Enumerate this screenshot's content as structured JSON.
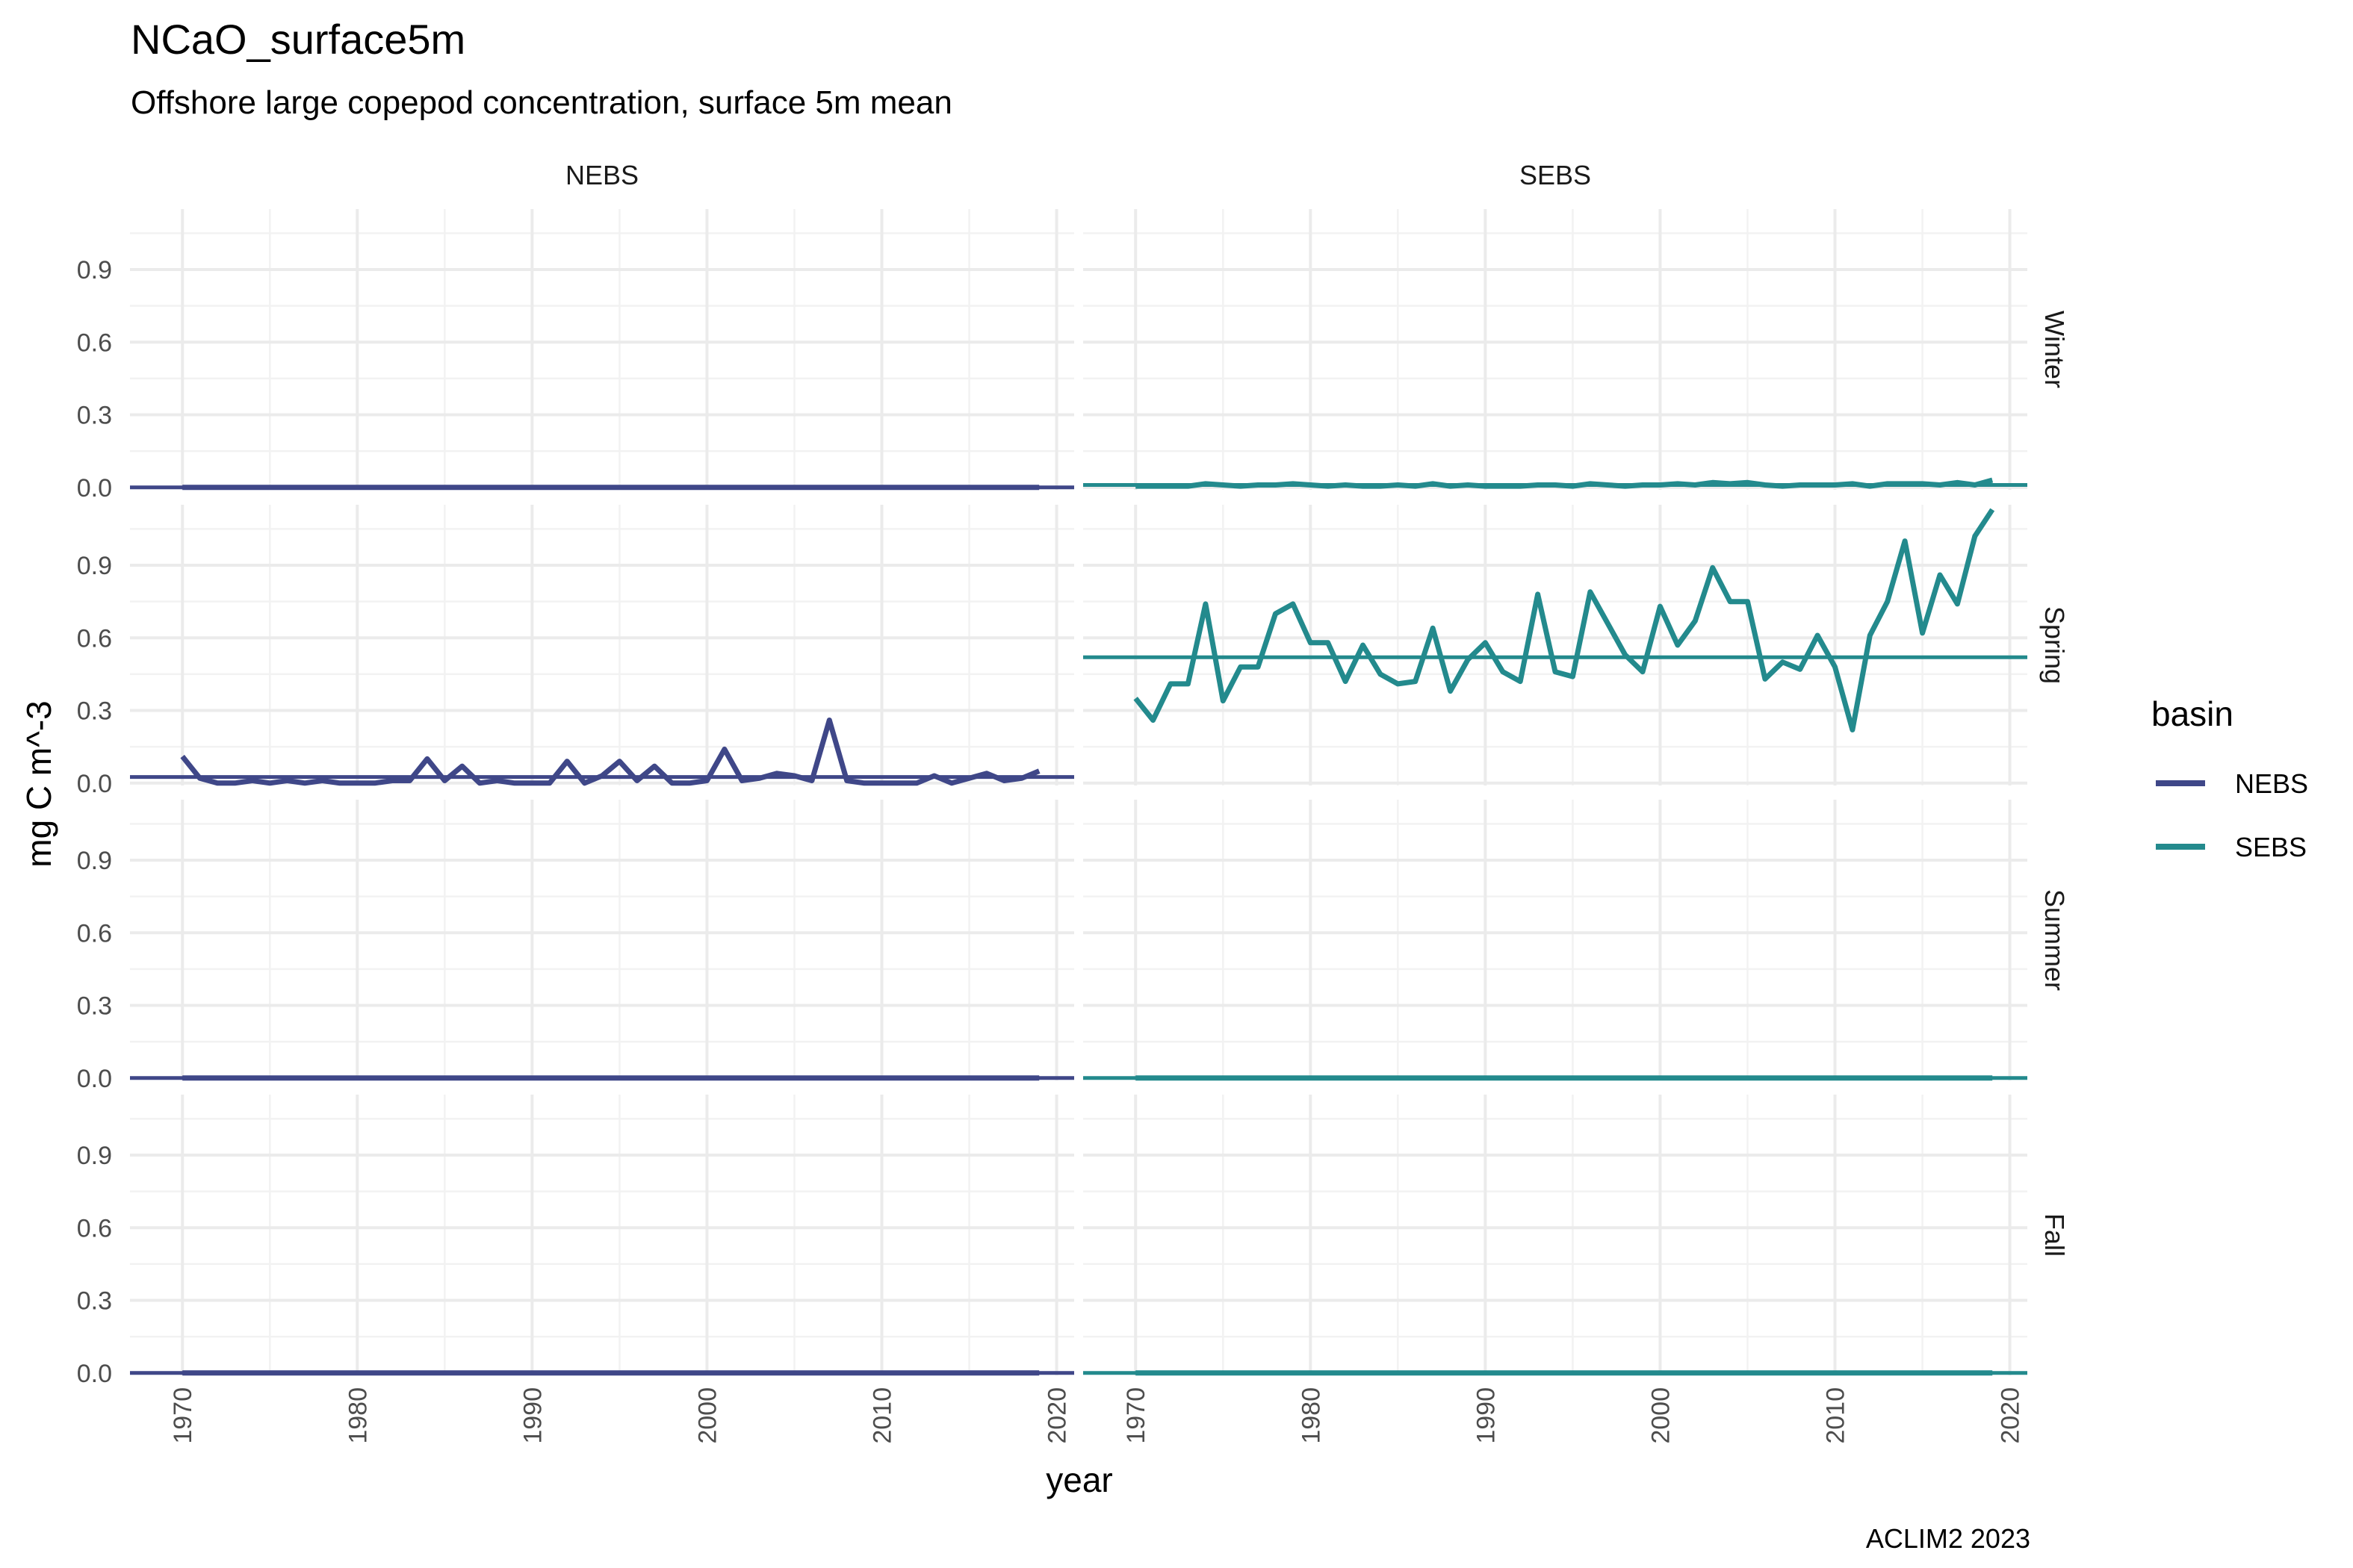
{
  "chart_data": {
    "type": "line",
    "title": "NCaO_surface5m",
    "subtitle": "Offshore large copepod concentration, surface 5m mean",
    "xlabel": "year",
    "ylabel": "mg C m^-3",
    "caption": "ACLIM2 2023",
    "xlim": [
      1967,
      2021
    ],
    "ylim": [
      -0.01,
      1.15
    ],
    "x_ticks": [
      "1970",
      "1980",
      "1990",
      "2000",
      "2010",
      "2020"
    ],
    "y_ticks": [
      "0.0",
      "0.3",
      "0.6",
      "0.9"
    ],
    "grid": true,
    "legend": {
      "title": "basin",
      "position": "right",
      "entries": [
        {
          "label": "NEBS",
          "color": "#3f4788"
        },
        {
          "label": "SEBS",
          "color": "#238a8d"
        }
      ]
    },
    "facet_columns": [
      "NEBS",
      "SEBS"
    ],
    "facet_rows": [
      "Winter",
      "Spring",
      "Summer",
      "Fall"
    ],
    "x": [
      1970,
      1971,
      1972,
      1973,
      1974,
      1975,
      1976,
      1977,
      1978,
      1979,
      1980,
      1981,
      1982,
      1983,
      1984,
      1985,
      1986,
      1987,
      1988,
      1989,
      1990,
      1991,
      1992,
      1993,
      1994,
      1995,
      1996,
      1997,
      1998,
      1999,
      2000,
      2001,
      2002,
      2003,
      2004,
      2005,
      2006,
      2007,
      2008,
      2009,
      2010,
      2011,
      2012,
      2013,
      2014,
      2015,
      2016,
      2017,
      2018,
      2019
    ],
    "panels": [
      {
        "row": "Winter",
        "col": "NEBS",
        "color": "#3f4788",
        "mean": 0.0,
        "values": [
          0,
          0,
          0,
          0,
          0,
          0,
          0,
          0,
          0,
          0,
          0,
          0,
          0,
          0,
          0,
          0,
          0,
          0,
          0,
          0,
          0,
          0,
          0,
          0,
          0,
          0,
          0,
          0,
          0,
          0,
          0,
          0,
          0,
          0,
          0,
          0,
          0,
          0,
          0,
          0,
          0,
          0,
          0,
          0,
          0,
          0,
          0,
          0,
          0,
          0
        ]
      },
      {
        "row": "Winter",
        "col": "SEBS",
        "color": "#238a8d",
        "mean": 0.01,
        "values": [
          0.005,
          0.005,
          0.005,
          0.005,
          0.015,
          0.01,
          0.005,
          0.01,
          0.01,
          0.015,
          0.01,
          0.005,
          0.01,
          0.005,
          0.005,
          0.01,
          0.005,
          0.015,
          0.005,
          0.01,
          0.005,
          0.005,
          0.005,
          0.01,
          0.01,
          0.005,
          0.015,
          0.01,
          0.005,
          0.01,
          0.01,
          0.015,
          0.01,
          0.02,
          0.015,
          0.02,
          0.01,
          0.005,
          0.01,
          0.01,
          0.01,
          0.015,
          0.005,
          0.015,
          0.015,
          0.015,
          0.01,
          0.02,
          0.01,
          0.03
        ]
      },
      {
        "row": "Spring",
        "col": "NEBS",
        "color": "#3f4788",
        "mean": 0.025,
        "values": [
          0.11,
          0.02,
          0.0,
          0.0,
          0.01,
          0.0,
          0.01,
          0.0,
          0.01,
          0.0,
          0.0,
          0.0,
          0.01,
          0.01,
          0.1,
          0.01,
          0.07,
          0.0,
          0.01,
          0.0,
          0.0,
          0.0,
          0.09,
          0.0,
          0.03,
          0.09,
          0.01,
          0.07,
          0.0,
          0.0,
          0.01,
          0.14,
          0.01,
          0.02,
          0.04,
          0.03,
          0.01,
          0.26,
          0.01,
          0.0,
          0.0,
          0.0,
          0.0,
          0.03,
          0.0,
          0.02,
          0.04,
          0.01,
          0.02,
          0.05
        ]
      },
      {
        "row": "Spring",
        "col": "SEBS",
        "color": "#238a8d",
        "mean": 0.52,
        "values": [
          0.35,
          0.26,
          0.41,
          0.41,
          0.74,
          0.34,
          0.48,
          0.48,
          0.7,
          0.74,
          0.58,
          0.58,
          0.42,
          0.57,
          0.45,
          0.41,
          0.42,
          0.64,
          0.38,
          0.51,
          0.58,
          0.46,
          0.42,
          0.78,
          0.46,
          0.44,
          0.79,
          0.66,
          0.53,
          0.46,
          0.73,
          0.57,
          0.67,
          0.89,
          0.75,
          0.75,
          0.43,
          0.5,
          0.47,
          0.61,
          0.48,
          0.22,
          0.61,
          0.75,
          1.0,
          0.62,
          0.86,
          0.74,
          1.02,
          1.13
        ]
      },
      {
        "row": "Summer",
        "col": "NEBS",
        "color": "#3f4788",
        "mean": 0.0,
        "values": [
          0,
          0,
          0,
          0,
          0,
          0,
          0,
          0,
          0,
          0,
          0,
          0,
          0,
          0,
          0,
          0,
          0,
          0,
          0,
          0,
          0,
          0,
          0,
          0,
          0,
          0,
          0,
          0,
          0,
          0,
          0,
          0,
          0,
          0,
          0,
          0,
          0,
          0,
          0,
          0,
          0,
          0,
          0,
          0,
          0,
          0,
          0,
          0,
          0,
          0
        ]
      },
      {
        "row": "Summer",
        "col": "SEBS",
        "color": "#238a8d",
        "mean": 0.0,
        "values": [
          0,
          0,
          0,
          0,
          0,
          0,
          0,
          0,
          0,
          0,
          0,
          0,
          0,
          0,
          0,
          0,
          0,
          0,
          0,
          0,
          0,
          0,
          0,
          0,
          0,
          0,
          0,
          0,
          0,
          0,
          0,
          0,
          0,
          0,
          0,
          0,
          0,
          0,
          0,
          0,
          0,
          0,
          0,
          0,
          0,
          0,
          0,
          0,
          0,
          0
        ]
      },
      {
        "row": "Fall",
        "col": "NEBS",
        "color": "#3f4788",
        "mean": 0.0,
        "values": [
          0,
          0,
          0,
          0,
          0,
          0,
          0,
          0,
          0,
          0,
          0,
          0,
          0,
          0,
          0,
          0,
          0,
          0,
          0,
          0,
          0,
          0,
          0,
          0,
          0,
          0,
          0,
          0,
          0,
          0,
          0,
          0,
          0,
          0,
          0,
          0,
          0,
          0,
          0,
          0,
          0,
          0,
          0,
          0,
          0,
          0,
          0,
          0,
          0,
          0
        ]
      },
      {
        "row": "Fall",
        "col": "SEBS",
        "color": "#238a8d",
        "mean": 0.0,
        "values": [
          0,
          0,
          0,
          0,
          0,
          0,
          0,
          0,
          0,
          0,
          0,
          0,
          0,
          0,
          0,
          0,
          0,
          0,
          0,
          0,
          0,
          0,
          0,
          0,
          0,
          0,
          0,
          0,
          0,
          0,
          0,
          0,
          0,
          0,
          0,
          0,
          0,
          0,
          0,
          0,
          0,
          0,
          0,
          0,
          0,
          0,
          0,
          0,
          0,
          0
        ]
      }
    ]
  }
}
